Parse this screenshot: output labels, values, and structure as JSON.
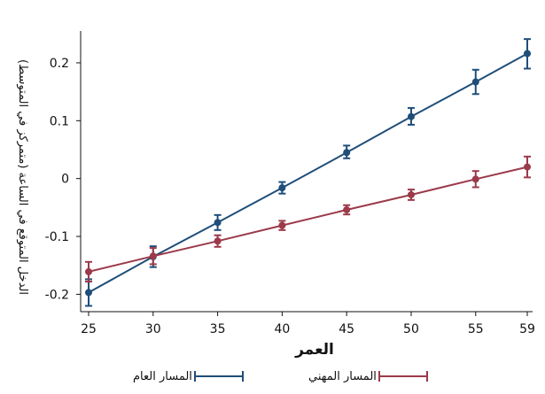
{
  "chart_data": {
    "type": "line",
    "xlabel": "العمر",
    "ylabel": "الدخل المتوقع في الساعة (متمركز في المتوسط)",
    "x_ticks": [
      "25",
      "30",
      "35",
      "40",
      "45",
      "50",
      "55",
      "59"
    ],
    "y_ticks": [
      "0.2",
      "0.1",
      "0",
      "-0.1",
      "-0.2"
    ],
    "xlim": [
      25,
      59
    ],
    "ylim": [
      -0.23,
      0.255
    ],
    "grid": false,
    "legend_position": "bottom",
    "series": [
      {
        "name": "المسار العام",
        "color": "#1f4e79",
        "x": [
          25,
          30,
          35,
          40,
          45,
          50,
          55,
          59
        ],
        "y": [
          -0.197,
          -0.135,
          -0.076,
          -0.016,
          0.045,
          0.107,
          0.167,
          0.216
        ],
        "ci_low": [
          -0.22,
          -0.153,
          -0.089,
          -0.026,
          0.035,
          0.093,
          0.146,
          0.19
        ],
        "ci_high": [
          -0.174,
          -0.117,
          -0.063,
          -0.006,
          0.057,
          0.122,
          0.188,
          0.241
        ]
      },
      {
        "name": "المسار المهني",
        "color": "#9b3a4a",
        "x": [
          25,
          30,
          35,
          40,
          45,
          50,
          55,
          59
        ],
        "y": [
          -0.161,
          -0.134,
          -0.108,
          -0.081,
          -0.054,
          -0.028,
          -0.001,
          0.02
        ],
        "ci_low": [
          -0.178,
          -0.148,
          -0.118,
          -0.089,
          -0.062,
          -0.037,
          -0.015,
          0.002
        ],
        "ci_high": [
          -0.144,
          -0.12,
          -0.098,
          -0.073,
          -0.046,
          -0.019,
          0.013,
          0.038
        ]
      }
    ]
  }
}
